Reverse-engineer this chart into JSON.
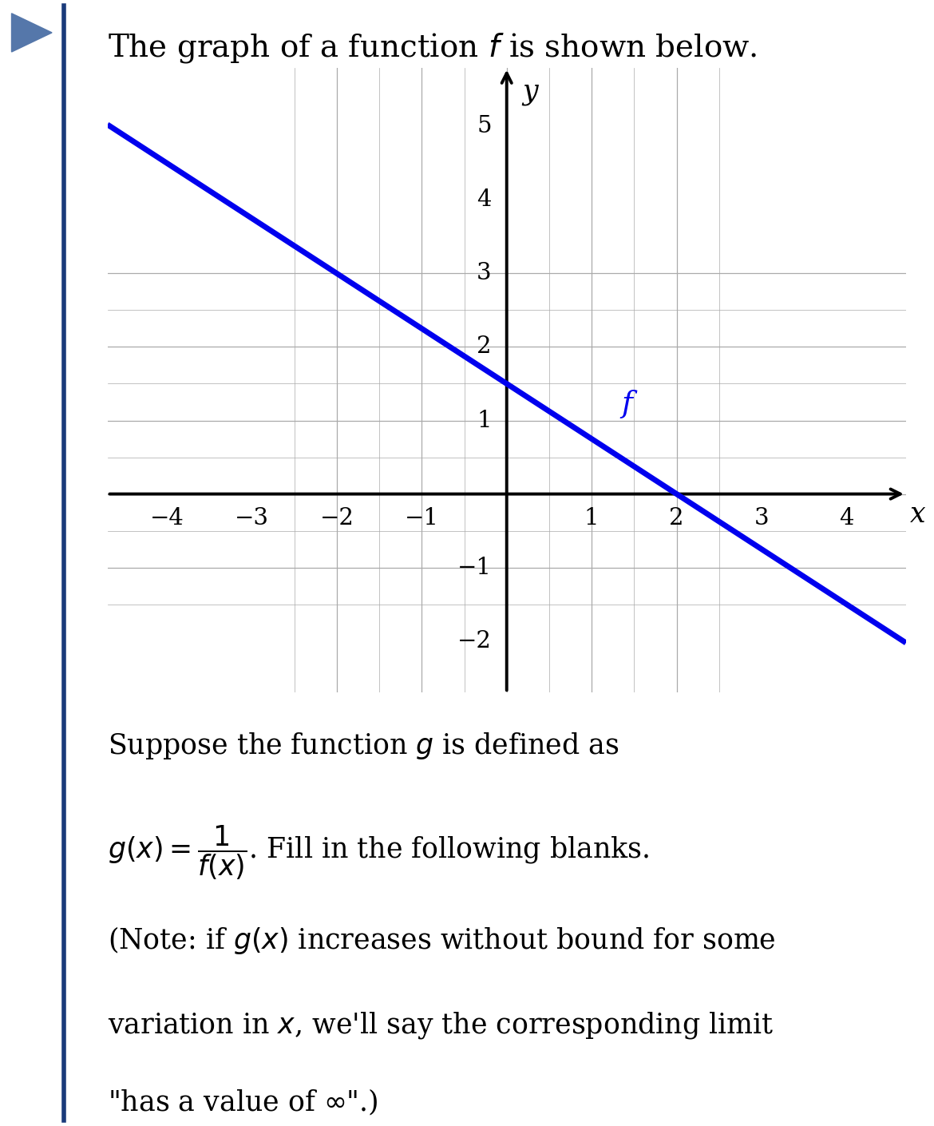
{
  "title": "The graph of a function $f$ is shown below.",
  "line_color": "#0000EE",
  "line_width": 5.0,
  "grid_color_major": "#aaaaaa",
  "grid_color_minor": "#cccccc",
  "axis_color": "#000000",
  "background_color": "#ffffff",
  "border_color": "#1a3a7a",
  "xlim": [
    -4.7,
    4.7
  ],
  "ylim": [
    -2.7,
    5.8
  ],
  "x_ticks": [
    -4,
    -3,
    -2,
    -1,
    1,
    2,
    3,
    4
  ],
  "y_ticks": [
    -2,
    -1,
    1,
    2,
    3,
    4,
    5
  ],
  "x_label": "x",
  "y_label": "y",
  "f_label": "f",
  "f_color": "#0000EE",
  "slope": -0.75,
  "intercept": 1.5,
  "text_line1": "Suppose the function $g$ is defined as",
  "text_line2": "$g(x) = \\dfrac{1}{f(x)}$. Fill in the following blanks.",
  "text_line3": "(Note: if $g(x)$ increases without bound for some",
  "text_line4": "variation in $x$, we'll say the corresponding limit",
  "text_line5": "\"has a value of $\\infty$\".)",
  "font_size_title": 28,
  "font_size_text": 25,
  "font_size_tick": 21,
  "font_size_axlabel": 25
}
